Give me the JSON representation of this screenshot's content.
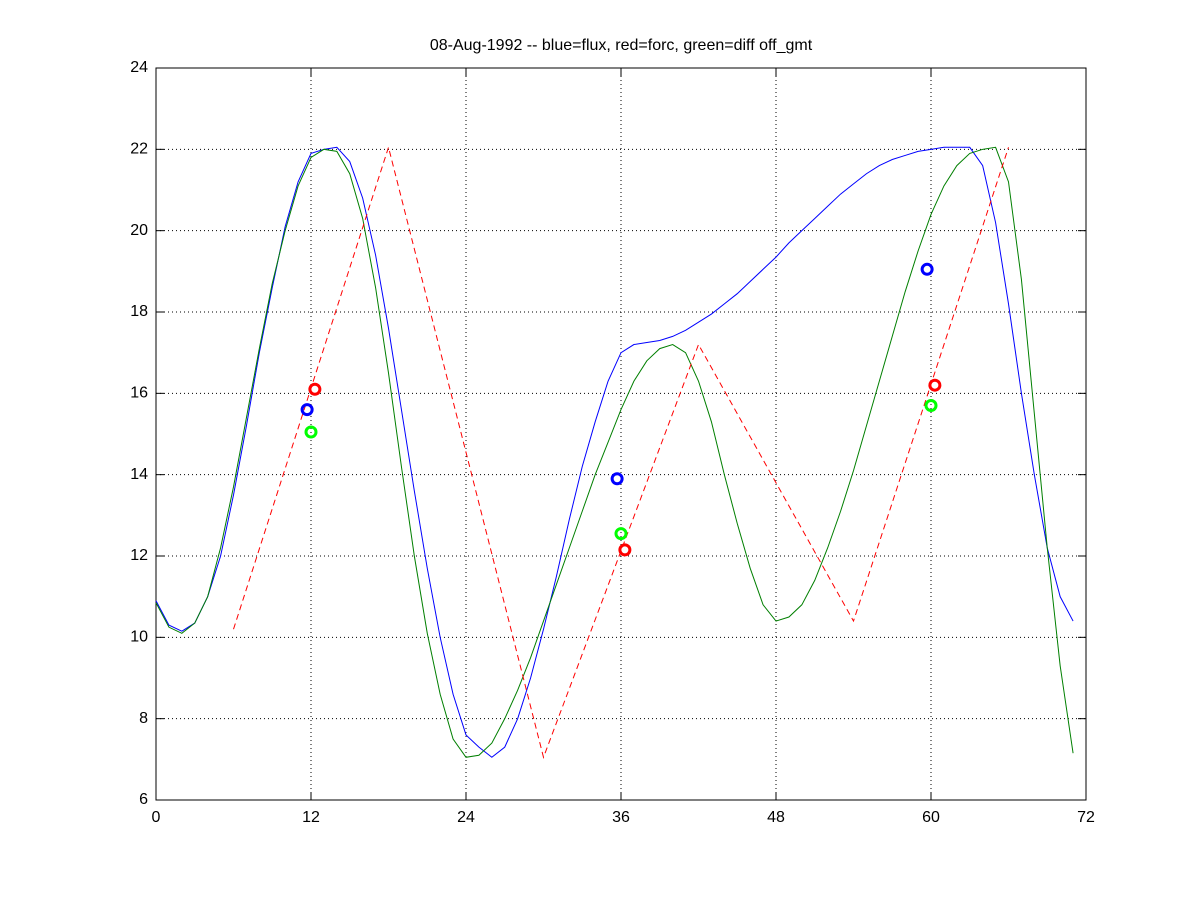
{
  "chart_data": {
    "type": "line",
    "title": "08-Aug-1992 -- blue=flux, red=forc, green=diff off_gmt",
    "xlim": [
      0,
      72
    ],
    "xticks": [
      0,
      12,
      24,
      36,
      48,
      60,
      72
    ],
    "ylim": [
      6,
      24
    ],
    "yticks": [
      6,
      8,
      10,
      12,
      14,
      16,
      18,
      20,
      22,
      24
    ],
    "grid": true,
    "series": [
      {
        "color": "#0000ff",
        "style": "solid",
        "x": [
          0,
          1,
          2,
          3,
          4,
          5,
          6,
          7,
          8,
          9,
          10,
          11,
          12,
          13,
          14,
          15,
          16,
          17,
          18,
          19,
          20,
          21,
          22,
          23,
          24,
          25,
          26,
          27,
          28,
          29,
          30,
          31,
          32,
          33,
          34,
          35,
          36,
          37,
          38,
          39,
          40,
          41,
          42,
          43,
          44,
          45,
          46,
          47,
          48,
          49,
          50,
          51,
          52,
          53,
          54,
          55,
          56,
          57,
          58,
          59,
          60,
          61,
          62,
          63,
          64,
          65,
          66,
          67,
          68,
          69,
          70,
          71
        ],
        "values": [
          10.9,
          10.3,
          10.15,
          10.35,
          11,
          12,
          13.5,
          15.2,
          17,
          18.6,
          20.1,
          21.2,
          21.9,
          22.0,
          22.05,
          21.7,
          20.8,
          19.4,
          17.6,
          15.6,
          13.6,
          11.7,
          10,
          8.6,
          7.6,
          7.3,
          7.05,
          7.3,
          8.0,
          9.0,
          10.2,
          11.5,
          12.9,
          14.2,
          15.3,
          16.3,
          17.0,
          17.2,
          17.25,
          17.3,
          17.4,
          17.55,
          17.75,
          17.95,
          18.2,
          18.45,
          18.75,
          19.05,
          19.35,
          19.7,
          20.0,
          20.3,
          20.6,
          20.9,
          21.15,
          21.4,
          21.6,
          21.75,
          21.85,
          21.95,
          22.0,
          22.05,
          22.05,
          22.05,
          21.6,
          20.2,
          18.2,
          16.0,
          14.0,
          12.2,
          11.0,
          10.4
        ]
      },
      {
        "color": "#007f00",
        "style": "solid",
        "x": [
          0,
          1,
          2,
          3,
          4,
          5,
          6,
          7,
          8,
          9,
          10,
          11,
          12,
          13,
          14,
          15,
          16,
          17,
          18,
          19,
          20,
          21,
          22,
          23,
          24,
          25,
          26,
          27,
          28,
          29,
          30,
          31,
          32,
          33,
          34,
          35,
          36,
          37,
          38,
          39,
          40,
          41,
          42,
          43,
          44,
          45,
          46,
          47,
          48,
          49,
          50,
          51,
          52,
          53,
          54,
          55,
          56,
          57,
          58,
          59,
          60,
          61,
          62,
          63,
          64,
          65,
          66,
          67,
          68,
          69,
          70,
          71
        ],
        "values": [
          10.85,
          10.25,
          10.1,
          10.35,
          11,
          12.2,
          13.7,
          15.4,
          17.1,
          18.7,
          20,
          21.1,
          21.8,
          22.0,
          21.95,
          21.4,
          20.3,
          18.6,
          16.5,
          14.2,
          12,
          10.1,
          8.6,
          7.5,
          7.05,
          7.1,
          7.4,
          8.0,
          8.7,
          9.5,
          10.4,
          11.3,
          12.2,
          13.1,
          14.0,
          14.8,
          15.6,
          16.3,
          16.8,
          17.1,
          17.2,
          17.0,
          16.3,
          15.3,
          14.0,
          12.8,
          11.7,
          10.8,
          10.4,
          10.5,
          10.8,
          11.4,
          12.2,
          13.1,
          14.1,
          15.2,
          16.3,
          17.4,
          18.5,
          19.5,
          20.4,
          21.1,
          21.6,
          21.9,
          22.0,
          22.05,
          21.2,
          18.8,
          15.5,
          12.2,
          9.3,
          7.15
        ]
      },
      {
        "color": "#ff0000",
        "style": "dashed",
        "x": [
          6,
          18,
          30,
          42,
          54,
          66
        ],
        "values": [
          10.2,
          22.05,
          7.05,
          17.2,
          10.4,
          22.05
        ]
      },
      {
        "color": "#0000ff",
        "style": "marker",
        "x": [
          11.7,
          35.7,
          59.7
        ],
        "values": [
          15.6,
          13.9,
          19.05
        ]
      },
      {
        "color": "#ff0000",
        "style": "marker",
        "x": [
          12.3,
          36.3,
          60.3
        ],
        "values": [
          16.1,
          12.15,
          16.2
        ]
      },
      {
        "color": "#00ff00",
        "style": "marker",
        "x": [
          12,
          36,
          60
        ],
        "values": [
          15.05,
          12.55,
          15.7
        ]
      }
    ]
  }
}
